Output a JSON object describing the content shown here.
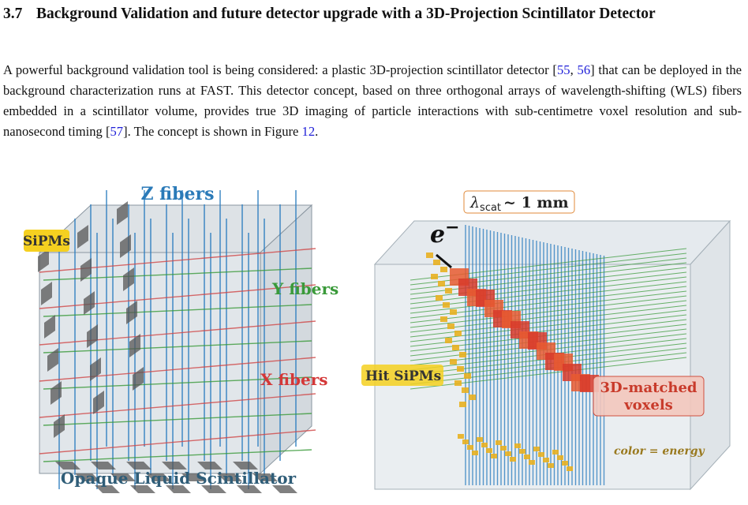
{
  "section": {
    "number": "3.7",
    "title": "Background Validation and future detector upgrade with a 3D-Projection Scintillator Detector"
  },
  "paragraph": [
    "A powerful background validation tool is being considered: a plastic 3D-projection scintillator detector [",
    "55",
    ", ",
    "56",
    "] that can be deployed in the background characterization runs at FAST. This detector concept, based on three orthogonal arrays of wavelength-shifting (WLS) fibers embedded in a scintillator volume, provides true 3D imaging of particle interactions with sub-centimetre voxel resolution and sub-nanosecond timing [",
    "57",
    "]. The concept is shown in Figure ",
    "12",
    "."
  ],
  "figure": {
    "left": {
      "z_label": "Z fibers",
      "sipm_label": "SiPMs",
      "y_label": "Y fibers",
      "x_label": "X fibers",
      "bottom_label": "Opaque Liquid Scintillator"
    },
    "right": {
      "lambda": {
        "symbol": "λ",
        "subscript": "scat",
        "rest": "~ 1 mm"
      },
      "particle": {
        "symbol": "e",
        "charge": "−"
      },
      "hit_label": "Hit SiPMs",
      "voxel_label": [
        "3D-matched",
        "voxels"
      ],
      "color_note": "color = energy"
    }
  }
}
